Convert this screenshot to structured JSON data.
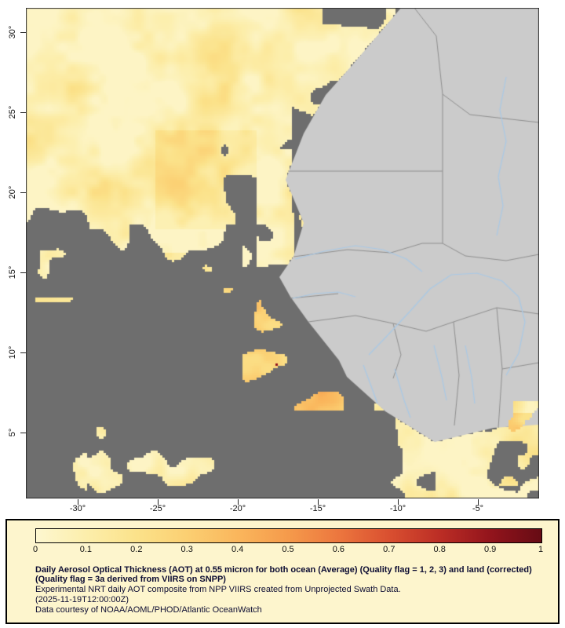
{
  "map": {
    "lat_labels": [
      "30°",
      "25°",
      "20°",
      "15°",
      "10°",
      "5°"
    ],
    "lon_labels": [
      "-30°",
      "-25°",
      "-20°",
      "-15°",
      "-10°",
      "-5°"
    ],
    "colors": {
      "ocean_nodata": "#6e6e6e",
      "land": "#cbcbcb",
      "country_border": "#8f8f8f",
      "river": "#a9c9e6",
      "frame": "#2b2b2b"
    }
  },
  "legend": {
    "background": "#fdf5cd",
    "border": "#000000",
    "tick_labels": [
      "0",
      "0.1",
      "0.2",
      "0.3",
      "0.4",
      "0.5",
      "0.6",
      "0.7",
      "0.8",
      "0.9",
      "1"
    ],
    "colormap": [
      "#fdf7d0",
      "#fceeab",
      "#fbe28a",
      "#fbcf72",
      "#fab65c",
      "#f59a4b",
      "#ec763e",
      "#d94f30",
      "#bb2d25",
      "#92141c",
      "#660b14"
    ],
    "caption_bold": "Daily Aerosol Optical Thickness (AOT) at 0.55 micron for both ocean (Average) (Quality flag = 1, 2, 3) and land (corrected) (Quality flag = 3a derived from VIIRS on SNPP)",
    "caption_line2": "Experimental NRT daily AOT composite from NPP VIIRS created from Unprojected Swath Data.",
    "caption_date": "(2025-11-19T12:00:00Z)",
    "caption_credit": "Data courtesy of NOAA/AOML/PHOD/Atlantic OceanWatch"
  }
}
